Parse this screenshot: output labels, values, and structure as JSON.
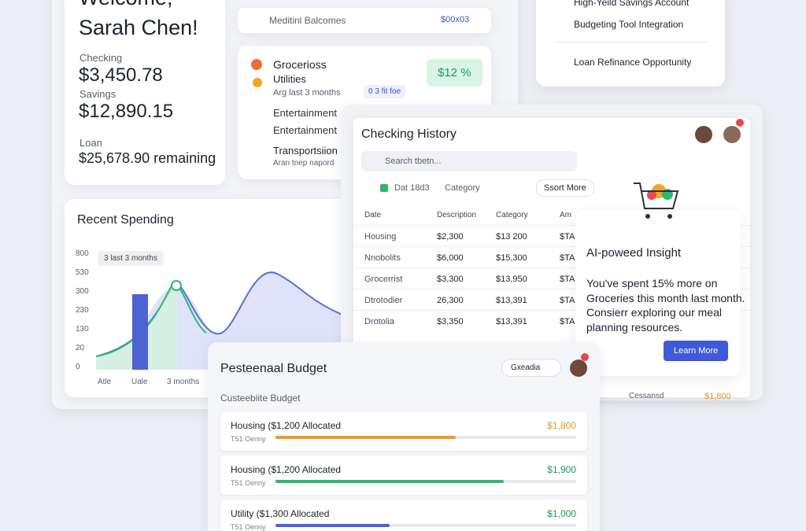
{
  "welcome": {
    "greeting": "Welcome,",
    "name": "Sarah Chen!",
    "accounts": [
      {
        "label": "Checking",
        "amount": "$3,450.78"
      },
      {
        "label": "Savings",
        "amount": "$12,890.15"
      },
      {
        "label": "Loan",
        "amount": "$25,678.90 remaining"
      }
    ]
  },
  "balances_bar": {
    "label": "Meditinl Balcomes",
    "value": "$00x03"
  },
  "categories_card": {
    "items": [
      "Grocerioss",
      "Utilities"
    ],
    "period": "Arg last 3 months",
    "chip": "0 3 fit foe",
    "badge": "$12 %",
    "more": [
      "Entertainment",
      "Entertainment"
    ],
    "transport": "Transportsiion",
    "transport_sub": "Aran tnep napord"
  },
  "offers": [
    "High-Yeild Savings Account",
    "Budgeting Tool Integration",
    "Loan Refinance Opportunity"
  ],
  "spending": {
    "title": "Recent Spending",
    "filter": "3 last 3 months",
    "y_labels": [
      "800",
      "530",
      "300",
      "230",
      "130",
      "20",
      "0"
    ],
    "x_labels": [
      "Atle",
      "Uale",
      "3 months"
    ]
  },
  "history": {
    "title": "Checking History",
    "search": "Search tbetn...",
    "filter_date": "Dat 18d3",
    "filter_category": "Category",
    "sort": "Ssort More",
    "columns": [
      "Date",
      "Description",
      "Category",
      "Am"
    ],
    "rows": [
      [
        "Housing",
        "$2,300",
        "$13 200",
        "$TA"
      ],
      [
        "Nnobolits",
        "$6,000",
        "$15,300",
        "$TA"
      ],
      [
        "Grocerrist",
        "$3,300",
        "$13,950",
        "$TA"
      ],
      [
        "Dtrotodier",
        "26,300",
        "$13,391",
        "$TA"
      ],
      [
        "Drotolia",
        "$3,350",
        "$13,391",
        "$TA"
      ]
    ],
    "footer_row": [
      "Cessansd",
      "$1,800"
    ]
  },
  "insight": {
    "title": "AI-poweed Insight",
    "body": "You've spent 15% more on Groceries this month last month. Consierr exploring our meal planning resources.",
    "button": "Learn More"
  },
  "budget": {
    "title": "Pesteenaal Budget",
    "dropdown": "Gxeadia",
    "subtitle": "Custeebiite Budget",
    "items": [
      {
        "label": "Housing ($1,200 Allocated",
        "sub": "T51 Oenny",
        "amount": "$1,800"
      },
      {
        "label": "Housing ($1,200 Allocated",
        "sub": "T51 Oenny",
        "amount": "$1,900"
      },
      {
        "label": "Utility ($1,300 Allocated",
        "sub": "T51 Oenny",
        "amount": "$1,000"
      }
    ]
  }
}
